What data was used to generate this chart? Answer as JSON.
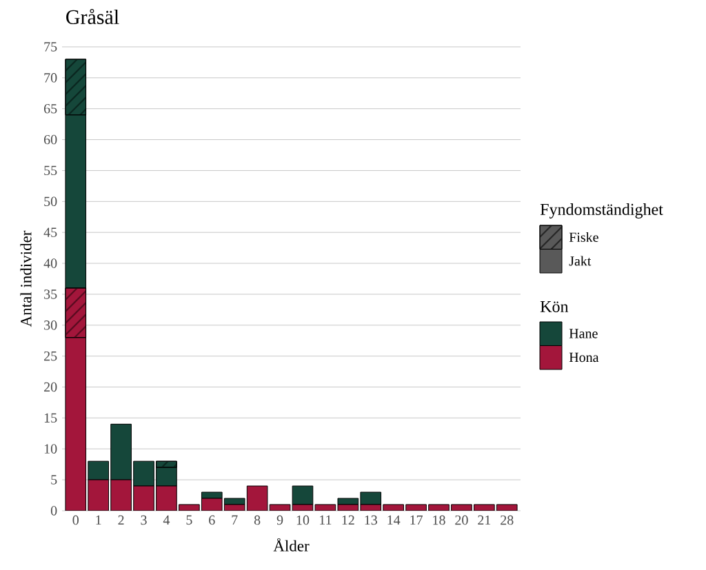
{
  "chart_data": {
    "type": "bar",
    "title": "Gråsäl",
    "xlabel": "Ålder",
    "ylabel": "Antal individer",
    "categories": [
      "0",
      "1",
      "2",
      "3",
      "4",
      "5",
      "6",
      "7",
      "8",
      "9",
      "10",
      "11",
      "12",
      "13",
      "14",
      "17",
      "18",
      "20",
      "21",
      "28"
    ],
    "stacked": true,
    "series": [
      {
        "name": "Hona",
        "color": "#a3163b",
        "values": [
          28,
          5,
          5,
          4,
          4,
          1,
          2,
          1,
          4,
          1,
          1,
          1,
          1,
          1,
          1,
          1,
          1,
          1,
          1,
          1
        ]
      },
      {
        "color": "#a3163b",
        "values": [
          8,
          0,
          0,
          0,
          0,
          0,
          0,
          0,
          0,
          0,
          0,
          0,
          0,
          0,
          0,
          0,
          0,
          0,
          0,
          0
        ]
      },
      {
        "name": "Hane",
        "color": "#15473a",
        "values": [
          28,
          3,
          9,
          4,
          3,
          0,
          1,
          1,
          0,
          0,
          3,
          0,
          1,
          2,
          0,
          0,
          0,
          0,
          0,
          0
        ]
      },
      {
        "color": "#15473a",
        "values": [
          9,
          0,
          0,
          0,
          1,
          0,
          0,
          0,
          0,
          0,
          0,
          0,
          0,
          0,
          0,
          0,
          0,
          0,
          0,
          0
        ]
      }
    ],
    "legend_title": "Kön",
    "annotations": [
      "Fyndomständighet",
      "Fiske",
      "Jakt"
    ],
    "ylim": [
      0,
      75
    ],
    "yticks": [
      0,
      5,
      10,
      15,
      20,
      25,
      30,
      35,
      40,
      45,
      50,
      55,
      60,
      65,
      70,
      75
    ],
    "grid": "y",
    "legend": "right"
  }
}
